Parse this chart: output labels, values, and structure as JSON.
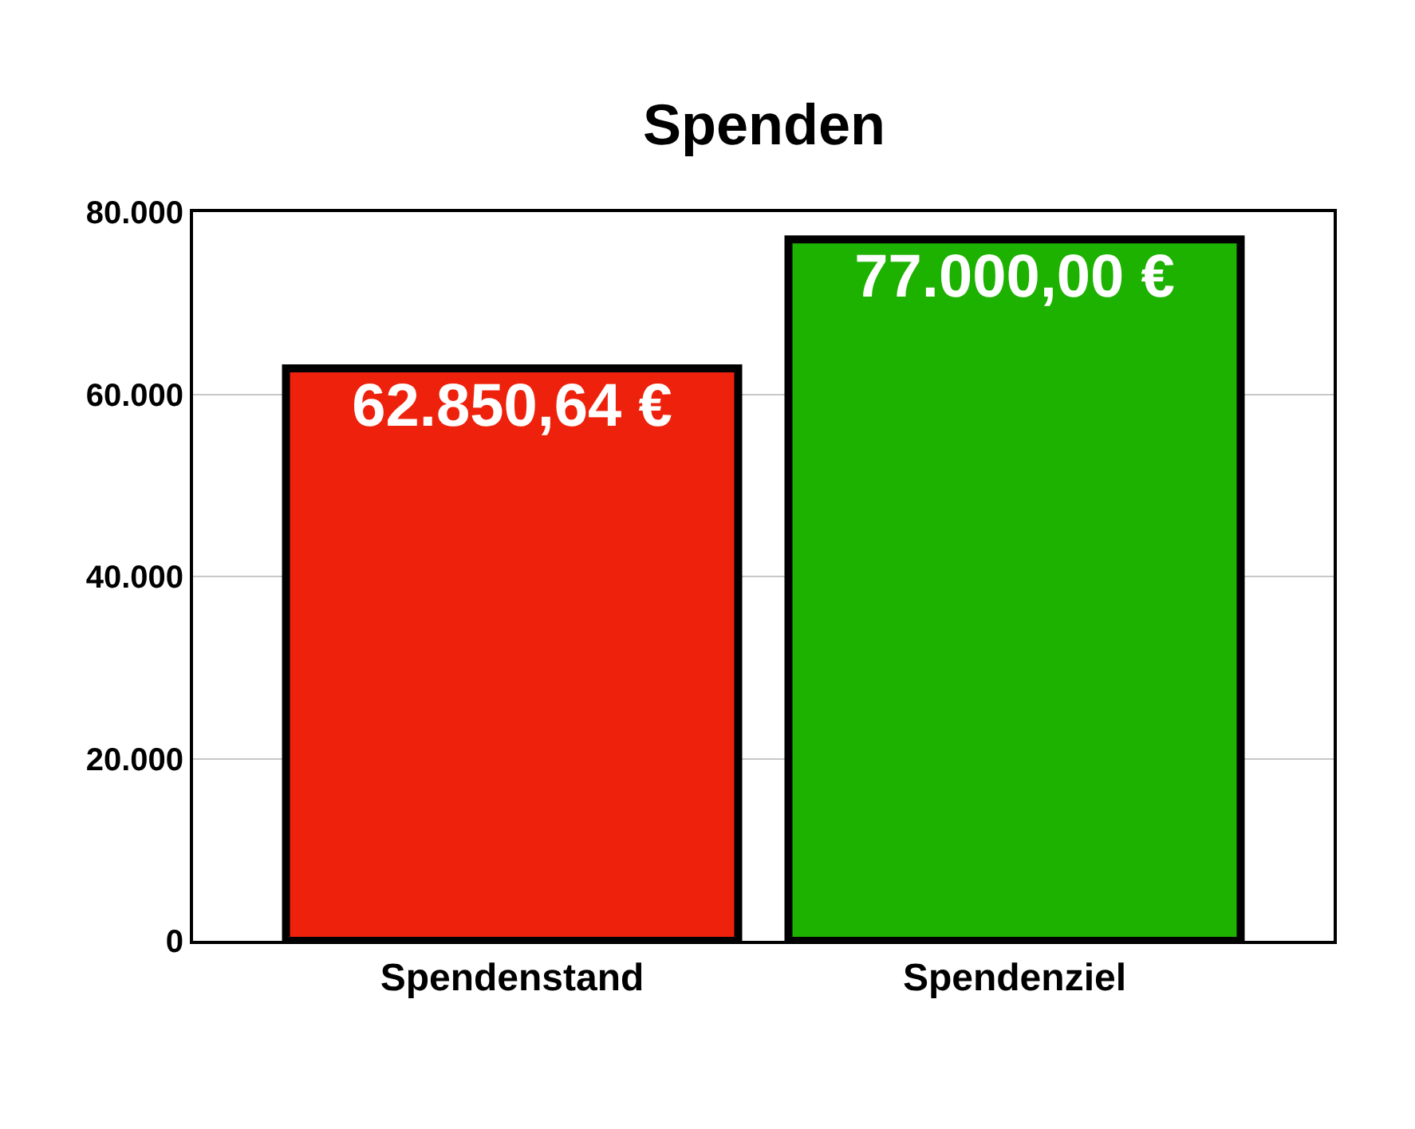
{
  "chart_data": {
    "type": "bar",
    "title": "Spenden",
    "categories": [
      "Spendenstand",
      "Spendenziel"
    ],
    "values": [
      62850.64,
      77000
    ],
    "colors": [
      "#ee220c",
      "#1db100"
    ],
    "value_labels": [
      "62.850,64 €",
      "77.000,00 €"
    ],
    "ylim": [
      0,
      80000
    ],
    "yticks": [
      0,
      {
        "value": 20000,
        "label": "20.000"
      },
      {
        "value": 40000,
        "label": "40.000"
      },
      {
        "value": 60000,
        "label": "60.000"
      },
      {
        "value": 80000,
        "label": "80.000"
      }
    ],
    "grid": "y"
  }
}
